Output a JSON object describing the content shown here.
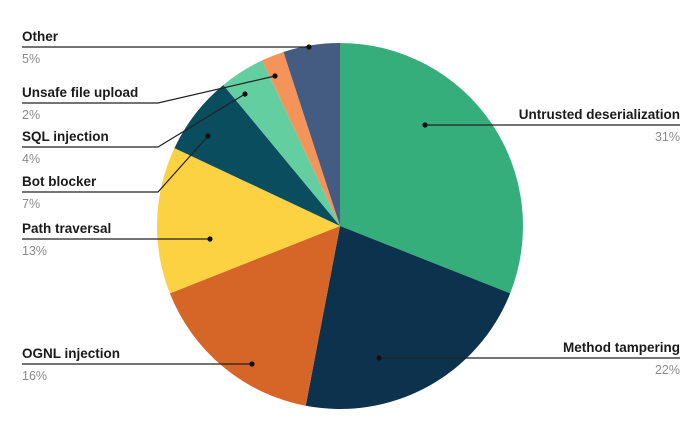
{
  "chart_data": {
    "type": "pie",
    "title": "",
    "start_angle_deg": 0,
    "direction": "clockwise",
    "slices": [
      {
        "label": "Untrusted deserialization",
        "value": 31,
        "pct_text": "31%",
        "color": "#36AE7C"
      },
      {
        "label": "Method tampering",
        "value": 22,
        "pct_text": "22%",
        "color": "#0D324D"
      },
      {
        "label": "OGNL injection",
        "value": 16,
        "pct_text": "16%",
        "color": "#D66528"
      },
      {
        "label": "Path traversal",
        "value": 13,
        "pct_text": "13%",
        "color": "#FCD243"
      },
      {
        "label": "Bot blocker",
        "value": 7,
        "pct_text": "7%",
        "color": "#0A4D5F"
      },
      {
        "label": "SQL injection",
        "value": 4,
        "pct_text": "4%",
        "color": "#63CFA0"
      },
      {
        "label": "Unsafe file upload",
        "value": 2,
        "pct_text": "2%",
        "color": "#F4935A"
      },
      {
        "label": "Other",
        "value": 5,
        "pct_text": "5%",
        "color": "#445C82"
      }
    ],
    "legend": "callout labels with leader lines"
  },
  "labels": {
    "untrusted": {
      "name": "Untrusted deserialization",
      "pct": "31%"
    },
    "method": {
      "name": "Method tampering",
      "pct": "22%"
    },
    "ognl": {
      "name": "OGNL injection",
      "pct": "16%"
    },
    "path": {
      "name": "Path traversal",
      "pct": "13%"
    },
    "bot": {
      "name": "Bot blocker",
      "pct": "7%"
    },
    "sql": {
      "name": "SQL injection",
      "pct": "4%"
    },
    "upload": {
      "name": "Unsafe file upload",
      "pct": "2%"
    },
    "other": {
      "name": "Other",
      "pct": "5%"
    }
  }
}
